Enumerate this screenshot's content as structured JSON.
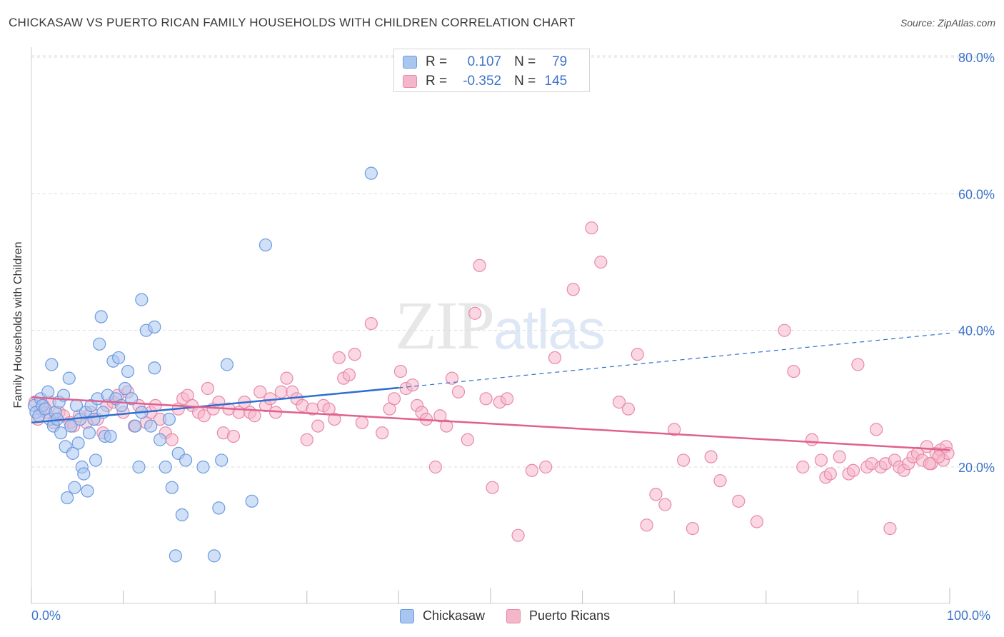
{
  "header": {
    "title": "CHICKASAW VS PUERTO RICAN FAMILY HOUSEHOLDS WITH CHILDREN CORRELATION CHART",
    "source": "Source: ZipAtlas.com"
  },
  "watermark": {
    "zip": "ZIP",
    "atlas": "atlas"
  },
  "legend": {
    "r_label": "R =",
    "n_label": "N =",
    "rows": [
      {
        "r": "0.107",
        "n": "79"
      },
      {
        "r": "-0.352",
        "n": "145"
      }
    ]
  },
  "colors": {
    "chickasaw_fill": "#a9c6f0",
    "chickasaw_stroke": "#6b9ae0",
    "chickasaw_line": "#2e6fcf",
    "puerto_fill": "#f5b6ca",
    "puerto_stroke": "#e889a8",
    "puerto_line": "#e0608e",
    "axis_text": "#3d74c9",
    "grid": "#dcdcdc"
  },
  "chart_data": {
    "type": "scatter",
    "title": "CHICKASAW VS PUERTO RICAN FAMILY HOUSEHOLDS WITH CHILDREN CORRELATION CHART",
    "xlabel": "",
    "ylabel": "Family Households with Children",
    "xlim": [
      0,
      100
    ],
    "ylim": [
      0,
      86
    ],
    "x_tick_labels": [
      "0.0%",
      "100.0%"
    ],
    "y_ticks": [
      20,
      40,
      60,
      80
    ],
    "y_tick_labels": [
      "20.0%",
      "40.0%",
      "60.0%",
      "80.0%"
    ],
    "grid": true,
    "legend_position": "bottom",
    "series": [
      {
        "name": "Chickasaw",
        "r": 0.107,
        "n": 79,
        "trend": {
          "x0": 0,
          "y0": 26.5,
          "x1": 40,
          "y1": 31.6,
          "dashed_to_x": 100,
          "dashed_to_y": 39.6
        },
        "points": [
          [
            0.3,
            29
          ],
          [
            0.5,
            28
          ],
          [
            0.8,
            27.5
          ],
          [
            1.0,
            30
          ],
          [
            1.2,
            29
          ],
          [
            1.5,
            28.5
          ],
          [
            1.8,
            31
          ],
          [
            2.0,
            27
          ],
          [
            2.2,
            35
          ],
          [
            2.4,
            26
          ],
          [
            2.6,
            28
          ],
          [
            2.8,
            27
          ],
          [
            3.0,
            29.5
          ],
          [
            3.2,
            25
          ],
          [
            3.5,
            30.5
          ],
          [
            3.7,
            23
          ],
          [
            3.9,
            15.5
          ],
          [
            4.1,
            33
          ],
          [
            4.3,
            26
          ],
          [
            4.5,
            22
          ],
          [
            4.7,
            17
          ],
          [
            4.9,
            29
          ],
          [
            5.1,
            23.5
          ],
          [
            5.3,
            27
          ],
          [
            5.5,
            20
          ],
          [
            5.7,
            19
          ],
          [
            5.9,
            28
          ],
          [
            6.1,
            16.5
          ],
          [
            6.3,
            25
          ],
          [
            6.5,
            29
          ],
          [
            6.8,
            27
          ],
          [
            7.0,
            21
          ],
          [
            7.2,
            30
          ],
          [
            7.4,
            38
          ],
          [
            7.6,
            42
          ],
          [
            7.8,
            28
          ],
          [
            8.0,
            24.5
          ],
          [
            8.3,
            30.5
          ],
          [
            8.6,
            24.5
          ],
          [
            8.9,
            35.5
          ],
          [
            9.2,
            30
          ],
          [
            9.5,
            36
          ],
          [
            9.8,
            29
          ],
          [
            10.2,
            31.5
          ],
          [
            10.5,
            34
          ],
          [
            10.9,
            30
          ],
          [
            11.3,
            26
          ],
          [
            11.7,
            20
          ],
          [
            12.0,
            28
          ],
          [
            12.0,
            44.5
          ],
          [
            12.5,
            40
          ],
          [
            13.0,
            26
          ],
          [
            13.4,
            34.5
          ],
          [
            13.4,
            40.5
          ],
          [
            14.0,
            24
          ],
          [
            14.6,
            20
          ],
          [
            15.0,
            27
          ],
          [
            15.3,
            17
          ],
          [
            15.7,
            7
          ],
          [
            16.0,
            22
          ],
          [
            16.4,
            13
          ],
          [
            16.8,
            21
          ],
          [
            18.7,
            20
          ],
          [
            19.9,
            7
          ],
          [
            20.4,
            14
          ],
          [
            20.7,
            21
          ],
          [
            21.3,
            35
          ],
          [
            24.0,
            15
          ],
          [
            25.5,
            52.5
          ],
          [
            37.0,
            63
          ]
        ]
      },
      {
        "name": "Puerto Ricans",
        "r": -0.352,
        "n": 145,
        "trend": {
          "x0": 0,
          "y0": 30.2,
          "x1": 100,
          "y1": 22.5
        },
        "points": [
          [
            0.4,
            29.5
          ],
          [
            0.7,
            27
          ],
          [
            1.0,
            28.5
          ],
          [
            1.3,
            29
          ],
          [
            1.6,
            28
          ],
          [
            2.0,
            29.5
          ],
          [
            2.4,
            26.5
          ],
          [
            3.0,
            28
          ],
          [
            3.5,
            27.5
          ],
          [
            4.2,
            26.5
          ],
          [
            4.6,
            26
          ],
          [
            5.2,
            27.5
          ],
          [
            6.0,
            26.5
          ],
          [
            6.5,
            28
          ],
          [
            7.2,
            27
          ],
          [
            7.8,
            25
          ],
          [
            8.2,
            29
          ],
          [
            8.9,
            29.5
          ],
          [
            9.4,
            30.5
          ],
          [
            10.0,
            28
          ],
          [
            10.5,
            31
          ],
          [
            11.2,
            26
          ],
          [
            11.7,
            29
          ],
          [
            12.5,
            26.5
          ],
          [
            13.0,
            28
          ],
          [
            13.5,
            29
          ],
          [
            14.0,
            27
          ],
          [
            14.6,
            25
          ],
          [
            15.3,
            24
          ],
          [
            16.0,
            28.5
          ],
          [
            16.5,
            30
          ],
          [
            17.0,
            30.5
          ],
          [
            17.5,
            29
          ],
          [
            18.2,
            28
          ],
          [
            18.8,
            27.5
          ],
          [
            19.2,
            31.5
          ],
          [
            19.8,
            28.5
          ],
          [
            20.4,
            29.5
          ],
          [
            20.9,
            25
          ],
          [
            21.5,
            28.5
          ],
          [
            22.0,
            24.5
          ],
          [
            22.6,
            28
          ],
          [
            23.2,
            29.5
          ],
          [
            23.8,
            28
          ],
          [
            24.3,
            27.5
          ],
          [
            24.9,
            31
          ],
          [
            25.5,
            29
          ],
          [
            26.0,
            30
          ],
          [
            26.6,
            28
          ],
          [
            27.2,
            31
          ],
          [
            27.8,
            33
          ],
          [
            28.4,
            31
          ],
          [
            28.9,
            30
          ],
          [
            29.5,
            29
          ],
          [
            30.0,
            24
          ],
          [
            30.6,
            28.5
          ],
          [
            31.2,
            26
          ],
          [
            31.8,
            29
          ],
          [
            32.4,
            28.5
          ],
          [
            33.0,
            27
          ],
          [
            33.5,
            36
          ],
          [
            34.0,
            33
          ],
          [
            34.6,
            33.5
          ],
          [
            35.2,
            36.5
          ],
          [
            36.0,
            26.5
          ],
          [
            37.0,
            41
          ],
          [
            38.2,
            25
          ],
          [
            39.0,
            28.5
          ],
          [
            39.5,
            30
          ],
          [
            40.2,
            34
          ],
          [
            40.8,
            31.5
          ],
          [
            41.5,
            32
          ],
          [
            42.0,
            29
          ],
          [
            42.5,
            28
          ],
          [
            43.0,
            27
          ],
          [
            44.0,
            20
          ],
          [
            44.5,
            27.5
          ],
          [
            45.2,
            26
          ],
          [
            45.8,
            33
          ],
          [
            46.5,
            31
          ],
          [
            47.5,
            24
          ],
          [
            48.3,
            42.5
          ],
          [
            48.8,
            49.5
          ],
          [
            49.5,
            30
          ],
          [
            50.2,
            17
          ],
          [
            51.0,
            29.5
          ],
          [
            51.8,
            30
          ],
          [
            53.0,
            10
          ],
          [
            54.5,
            19.5
          ],
          [
            56.0,
            20
          ],
          [
            57.0,
            36
          ],
          [
            59.0,
            46
          ],
          [
            61.0,
            55
          ],
          [
            62.0,
            50
          ],
          [
            64.0,
            29.5
          ],
          [
            65.0,
            28.5
          ],
          [
            66.0,
            36.5
          ],
          [
            67.0,
            11.5
          ],
          [
            68.0,
            16
          ],
          [
            69.0,
            14.5
          ],
          [
            70.0,
            25.5
          ],
          [
            71.0,
            21
          ],
          [
            72.0,
            11
          ],
          [
            74.0,
            21.5
          ],
          [
            75.0,
            18
          ],
          [
            77.0,
            15
          ],
          [
            79.0,
            12
          ],
          [
            82.0,
            40
          ],
          [
            83.0,
            34
          ],
          [
            84.0,
            20
          ],
          [
            85.0,
            24
          ],
          [
            86.0,
            21
          ],
          [
            86.5,
            18.5
          ],
          [
            87.0,
            19
          ],
          [
            88.0,
            21.5
          ],
          [
            89.0,
            19
          ],
          [
            89.5,
            19.5
          ],
          [
            90.0,
            35
          ],
          [
            91.0,
            20
          ],
          [
            91.5,
            20.5
          ],
          [
            92.0,
            25.5
          ],
          [
            92.5,
            20
          ],
          [
            93.0,
            20.5
          ],
          [
            93.5,
            11
          ],
          [
            94.0,
            21
          ],
          [
            94.5,
            20
          ],
          [
            95.0,
            19.5
          ],
          [
            95.5,
            20.5
          ],
          [
            96.0,
            21.5
          ],
          [
            96.5,
            22
          ],
          [
            97.0,
            21
          ],
          [
            97.5,
            23
          ],
          [
            98.0,
            20.5
          ],
          [
            98.5,
            22
          ],
          [
            99.0,
            22.5
          ],
          [
            99.3,
            21
          ],
          [
            99.6,
            23
          ],
          [
            99.8,
            22
          ],
          [
            98.8,
            21.5
          ],
          [
            97.8,
            20.5
          ]
        ]
      }
    ]
  },
  "bottom_legend": [
    "Chickasaw",
    "Puerto Ricans"
  ]
}
